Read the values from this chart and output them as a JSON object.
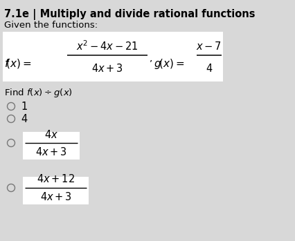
{
  "title": "7.1e | Multiply and divide rational functions",
  "given_text": "Given the functions:",
  "find_text": "Find f(x) ÷ g(x)",
  "background_color": "#d8d8d8",
  "white_box_color": "#ffffff",
  "title_fontsize": 10.5,
  "body_fontsize": 9.5,
  "math_fontsize": 10.5,
  "small_fontsize": 9.5
}
